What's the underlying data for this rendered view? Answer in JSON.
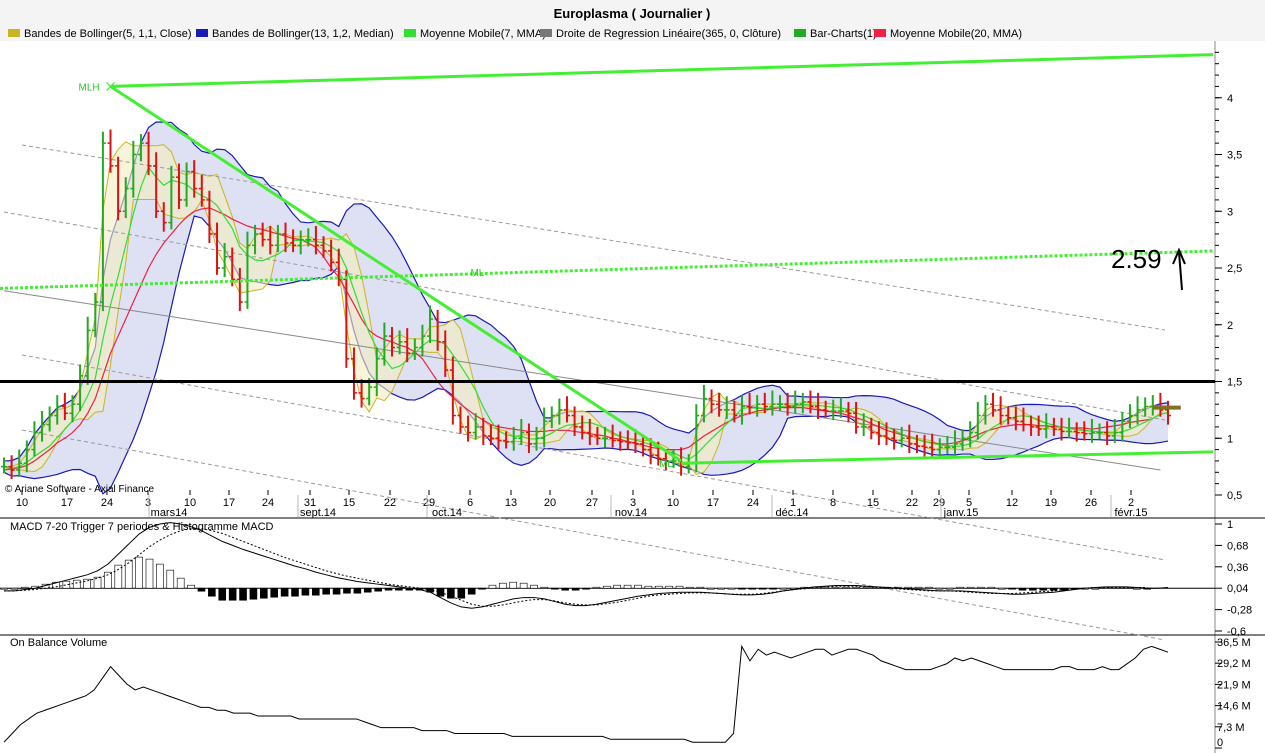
{
  "header": {
    "title": "Europlasma  ( Journalier )"
  },
  "legend": [
    {
      "label": "Bandes de Bollinger(5, 1,1, Close)",
      "color": "#c9b521"
    },
    {
      "label": "Bandes de Bollinger(13, 1,2, Median)",
      "color": "#1a1ab8"
    },
    {
      "label": "Moyenne Mobile(7, MMA)",
      "color": "#33dd33"
    },
    {
      "label": "Droite de Regression Linéaire(365, 0, Clôture)",
      "color": "#777777"
    },
    {
      "label": "Bar-Charts(1)",
      "color": "#22aa22"
    },
    {
      "label": "Moyenne Mobile(20, MMA)",
      "color": "#ee2244"
    }
  ],
  "copyright": "© Ariane Software - Axial Finance",
  "annotation": {
    "value_text": "2.59",
    "mlh_label": "MLH",
    "ml_label": "ML"
  },
  "colors": {
    "up": "#22aa22",
    "down": "#dd1111",
    "trend": "#44ee33",
    "bb13": "#1a1ab8",
    "bb5": "#c9b521",
    "ma7": "#33dd33",
    "ma20": "#ee2244",
    "reg": "#888888"
  },
  "chart_data": [
    {
      "type": "line",
      "title": "Europlasma  ( Journalier )",
      "y_ticks": [
        "4",
        "3,5",
        "3",
        "2,5",
        "2",
        "1,5",
        "1",
        "0,5"
      ],
      "ylim": [
        0.5,
        4.5
      ],
      "x_day_labels": [
        "10",
        "17",
        "24",
        "3",
        "10",
        "17",
        "24",
        "31",
        "15",
        "22",
        "29",
        "6",
        "13",
        "20",
        "27",
        "3",
        "10",
        "17",
        "24",
        "1",
        "8",
        "15",
        "22",
        "29",
        "5",
        "12",
        "19",
        "26",
        "2"
      ],
      "x_month_labels": [
        "mars14",
        "sept.14",
        "oct.14",
        "nov.14",
        "déc.14",
        "janv.15",
        "févr.15"
      ],
      "horizontal_levels": [
        1.5
      ],
      "price_close": [
        0.75,
        0.72,
        0.78,
        0.9,
        1.05,
        1.12,
        1.2,
        1.28,
        1.22,
        1.3,
        1.55,
        1.95,
        2.2,
        3.6,
        3.4,
        3.0,
        3.2,
        3.5,
        3.6,
        3.4,
        3.0,
        2.9,
        3.3,
        3.1,
        3.35,
        3.2,
        3.1,
        2.8,
        2.5,
        2.6,
        2.4,
        2.2,
        2.7,
        2.8,
        2.75,
        2.7,
        2.8,
        2.72,
        2.7,
        2.75,
        2.75,
        2.7,
        2.65,
        2.55,
        2.4,
        1.7,
        1.4,
        1.35,
        1.45,
        1.7,
        1.9,
        1.8,
        1.85,
        1.75,
        1.8,
        1.9,
        2.05,
        1.85,
        1.6,
        1.2,
        1.1,
        1.05,
        1.1,
        1.02,
        1.0,
        0.98,
        0.97,
        1.0,
        1.05,
        0.95,
        1.0,
        1.15,
        1.2,
        1.25,
        1.2,
        1.1,
        1.05,
        1.02,
        1.0,
        1.0,
        0.98,
        0.97,
        0.96,
        0.95,
        0.9,
        0.85,
        0.82,
        0.8,
        0.8,
        0.75,
        0.78,
        1.2,
        1.35,
        1.3,
        1.25,
        1.25,
        1.2,
        1.28,
        1.27,
        1.3,
        1.28,
        1.3,
        1.3,
        1.28,
        1.3,
        1.32,
        1.28,
        1.25,
        1.24,
        1.24,
        1.24,
        1.22,
        1.1,
        1.1,
        1.05,
        1.02,
        1.0,
        0.98,
        1.0,
        0.95,
        0.93,
        0.92,
        0.9,
        0.92,
        0.92,
        0.95,
        1.0,
        1.05,
        1.2,
        1.3,
        1.25,
        1.2,
        1.18,
        1.15,
        1.12,
        1.1,
        1.08,
        1.1,
        1.08,
        1.06,
        1.06,
        1.05,
        1.04,
        1.05,
        1.05,
        1.02,
        1.05,
        1.15,
        1.2,
        1.25,
        1.28,
        1.28,
        1.25,
        1.2
      ],
      "ma20": [
        0.72,
        0.73,
        0.74,
        0.76,
        0.8,
        0.85,
        0.9,
        0.96,
        1.0,
        1.05,
        1.12,
        1.22,
        1.35,
        1.55,
        1.75,
        1.9,
        2.05,
        2.2,
        2.35,
        2.5,
        2.62,
        2.72,
        2.8,
        2.88,
        2.95,
        3.0,
        3.02,
        3.03,
        3.0,
        2.97,
        2.93,
        2.9,
        2.87,
        2.85,
        2.84,
        2.82,
        2.8,
        2.78,
        2.76,
        2.75,
        2.72,
        2.68,
        2.6,
        2.5,
        2.42,
        2.3,
        2.18,
        2.05,
        1.95,
        1.9,
        1.87,
        1.85,
        1.82,
        1.8,
        1.76,
        1.7,
        1.6,
        1.5,
        1.42,
        1.36,
        1.3,
        1.25,
        1.2,
        1.16,
        1.12,
        1.1,
        1.09,
        1.08,
        1.07,
        1.06,
        1.06,
        1.06,
        1.07,
        1.07,
        1.07,
        1.06,
        1.05,
        1.04,
        1.03,
        1.02,
        1.0,
        0.99,
        0.97,
        0.96,
        0.94,
        0.92,
        0.91,
        0.9,
        0.9,
        0.9,
        0.92,
        0.97,
        1.02,
        1.06,
        1.1,
        1.14,
        1.17,
        1.2,
        1.22,
        1.24,
        1.25,
        1.26,
        1.27,
        1.27,
        1.27,
        1.27,
        1.26,
        1.25,
        1.24,
        1.23,
        1.22,
        1.2,
        1.18,
        1.16,
        1.13,
        1.1,
        1.07,
        1.05,
        1.03,
        1.01,
        0.99,
        0.97,
        0.96,
        0.95,
        0.95,
        0.96,
        0.98,
        1.0,
        1.03,
        1.06,
        1.08,
        1.1,
        1.11,
        1.12,
        1.12,
        1.12,
        1.11,
        1.11,
        1.1,
        1.1,
        1.09,
        1.09,
        1.09,
        1.08,
        1.09,
        1.1,
        1.11,
        1.12,
        1.14,
        1.15,
        1.16,
        1.17
      ],
      "regression_line": {
        "x": [
          0,
          152
        ],
        "y": [
          2.3,
          0.72
        ]
      },
      "trend_lines": [
        {
          "name": "upper_channel",
          "x": [
            14,
            163
          ],
          "y": [
            4.1,
            4.38
          ]
        },
        {
          "name": "descending",
          "x": [
            14,
            89
          ],
          "y": [
            4.1,
            0.8
          ]
        },
        {
          "name": "lower_channel",
          "x": [
            89,
            163
          ],
          "y": [
            0.78,
            0.88
          ]
        },
        {
          "name": "median_dotted",
          "x": [
            0,
            163
          ],
          "y": [
            2.32,
            2.65
          ]
        }
      ]
    },
    {
      "type": "bar",
      "title": "MACD 7-20  Trigger 7 periodes & Histogramme MACD",
      "y_ticks": [
        "1",
        "0,68",
        "0,36",
        "0,04",
        "-0,28",
        "-0,6"
      ],
      "ylim": [
        -0.6,
        1.0
      ],
      "macd": [
        0.0,
        0.0,
        0.02,
        0.04,
        0.08,
        0.12,
        0.16,
        0.2,
        0.24,
        0.3,
        0.4,
        0.55,
        0.7,
        0.85,
        0.95,
        1.0,
        1.02,
        1.0,
        0.96,
        0.9,
        0.82,
        0.74,
        0.68,
        0.62,
        0.57,
        0.52,
        0.47,
        0.42,
        0.37,
        0.33,
        0.28,
        0.24,
        0.2,
        0.17,
        0.14,
        0.12,
        0.1,
        0.08,
        0.06,
        0.04,
        0.02,
        -0.02,
        -0.1,
        -0.18,
        -0.24,
        -0.26,
        -0.24,
        -0.2,
        -0.16,
        -0.12,
        -0.1,
        -0.1,
        -0.12,
        -0.16,
        -0.2,
        -0.22,
        -0.22,
        -0.2,
        -0.17,
        -0.14,
        -0.11,
        -0.08,
        -0.06,
        -0.04,
        -0.03,
        -0.02,
        -0.02,
        -0.02,
        -0.03,
        -0.04,
        -0.05,
        -0.06,
        -0.06,
        -0.05,
        -0.03,
        0.0,
        0.02,
        0.04,
        0.06,
        0.07,
        0.08,
        0.08,
        0.08,
        0.07,
        0.06,
        0.05,
        0.04,
        0.03,
        0.02,
        0.01,
        0.0,
        0.0,
        0.0,
        -0.01,
        -0.02,
        -0.03,
        -0.04,
        -0.05,
        -0.05,
        -0.04,
        -0.03,
        -0.02,
        0.0,
        0.02,
        0.04,
        0.05,
        0.06,
        0.06,
        0.06,
        0.05,
        0.04,
        0.04,
        0.05
      ],
      "signal": [
        0.0,
        0.0,
        0.01,
        0.02,
        0.04,
        0.06,
        0.09,
        0.12,
        0.15,
        0.19,
        0.24,
        0.32,
        0.42,
        0.54,
        0.66,
        0.76,
        0.84,
        0.9,
        0.93,
        0.93,
        0.9,
        0.86,
        0.8,
        0.74,
        0.68,
        0.62,
        0.56,
        0.5,
        0.45,
        0.4,
        0.35,
        0.3,
        0.26,
        0.22,
        0.19,
        0.16,
        0.13,
        0.1,
        0.08,
        0.06,
        0.04,
        0.02,
        -0.02,
        -0.08,
        -0.14,
        -0.2,
        -0.23,
        -0.23,
        -0.21,
        -0.18,
        -0.15,
        -0.13,
        -0.13,
        -0.15,
        -0.18,
        -0.2,
        -0.21,
        -0.21,
        -0.19,
        -0.17,
        -0.14,
        -0.11,
        -0.08,
        -0.06,
        -0.05,
        -0.04,
        -0.03,
        -0.03,
        -0.03,
        -0.04,
        -0.05,
        -0.05,
        -0.05,
        -0.04,
        -0.02,
        0.0,
        0.02,
        0.03,
        0.05,
        0.06,
        0.07,
        0.07,
        0.07,
        0.06,
        0.05,
        0.04,
        0.03,
        0.02,
        0.01,
        0.0,
        0.0,
        0.0,
        -0.01,
        -0.02,
        -0.03,
        -0.04,
        -0.04,
        -0.04,
        -0.03,
        -0.02,
        -0.01,
        0.0,
        0.02,
        0.03,
        0.04,
        0.05,
        0.05,
        0.05,
        0.05,
        0.05,
        0.05
      ]
    },
    {
      "type": "line",
      "title": "On Balance Volume",
      "y_ticks": [
        "36,5 M",
        "29,2 M",
        "21,9 M",
        "14,6 M",
        "7,3 M",
        "0"
      ],
      "ylim": [
        0,
        36.5
      ],
      "obv": [
        2,
        5,
        8,
        10,
        12,
        13,
        14,
        15,
        16,
        17,
        18,
        20,
        24,
        28,
        25,
        22,
        20,
        21,
        20,
        19,
        18,
        17,
        16,
        15,
        14,
        14,
        13,
        13,
        12,
        12,
        12,
        11,
        11,
        11,
        11,
        11,
        10,
        10,
        10,
        10,
        10,
        10,
        10,
        10,
        9,
        8,
        7,
        7,
        7,
        7,
        7,
        6,
        6,
        6,
        6,
        5,
        5,
        5,
        5,
        5,
        5,
        5,
        4,
        4,
        4,
        4,
        4,
        4,
        4,
        4,
        4,
        4,
        4,
        4,
        3,
        3,
        3,
        3,
        3,
        3,
        3,
        3,
        3,
        3,
        2,
        2,
        2,
        2,
        2,
        5,
        35,
        30,
        34,
        32,
        33,
        32,
        31,
        32,
        33,
        34,
        34,
        32,
        33,
        34,
        34,
        33,
        32,
        30,
        29,
        28,
        27,
        27,
        27,
        27,
        28,
        29,
        31,
        30,
        31,
        30,
        29,
        28,
        27,
        27,
        27,
        27,
        27,
        27,
        27,
        28,
        28,
        27,
        27,
        27,
        28,
        27,
        27,
        29,
        31,
        34,
        35,
        34,
        33
      ]
    }
  ]
}
